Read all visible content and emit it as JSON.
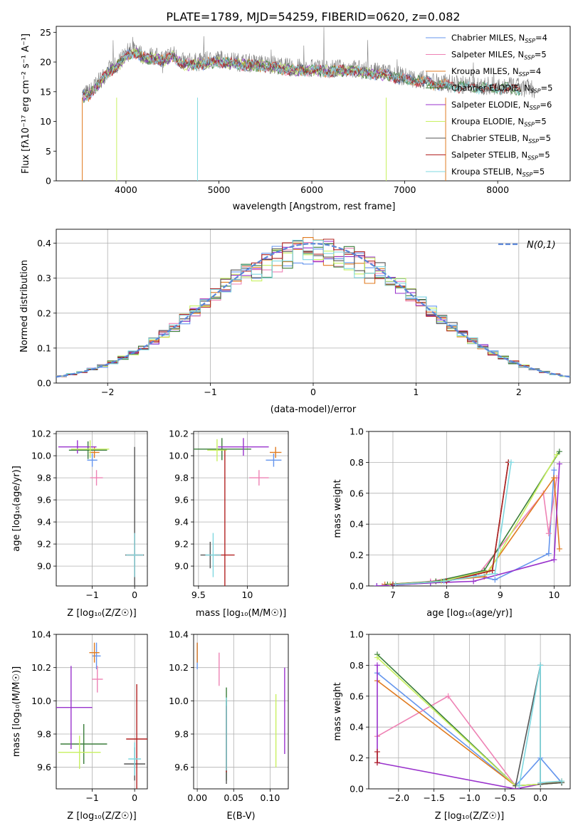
{
  "figure": {
    "title": "PLATE=1789, MJD=54259, FIBERID=0620, z=0.082"
  },
  "colors": {
    "chabrier_miles": "#6495ed",
    "salpeter_miles": "#ee82b4",
    "kroupa_miles": "#e07b20",
    "chabrier_elodie": "#3a7d3a",
    "salpeter_elodie": "#9932cc",
    "kroupa_elodie": "#c8f060",
    "chabrier_stelib": "#555555",
    "salpeter_stelib": "#b22222",
    "kroupa_stelib": "#7fd8e0"
  },
  "chart_data": [
    {
      "type": "line",
      "id": "spectrum",
      "title": "PLATE=1789, MJD=54259, FIBERID=0620, z=0.082",
      "xlabel": "wavelength [Angstrom, rest frame]",
      "ylabel": "Flux [fλ10⁻¹⁷ erg cm⁻² s⁻¹ A⁻¹]",
      "xlim": [
        3250,
        8780
      ],
      "ylim": [
        0,
        26
      ],
      "xticks": [
        4000,
        5000,
        6000,
        7000,
        8000
      ],
      "yticks": [
        0,
        5,
        10,
        15,
        20,
        25
      ],
      "legend_position": "top-right",
      "legend": [
        {
          "label": "Chabrier MILES, N",
          "sub": "SSP",
          "suffix": "=4",
          "color": "#6495ed"
        },
        {
          "label": "Salpeter MILES, N",
          "sub": "SSP",
          "suffix": "=5",
          "color": "#ee82b4"
        },
        {
          "label": "Kroupa MILES, N",
          "sub": "SSP",
          "suffix": "=4",
          "color": "#e07b20"
        },
        {
          "label": "Chabrier ELODIE, N",
          "sub": "SSP",
          "suffix": "=5",
          "color": "#3a7d3a"
        },
        {
          "label": "Salpeter ELODIE, N",
          "sub": "SSP",
          "suffix": "=6",
          "color": "#9932cc"
        },
        {
          "label": "Kroupa ELODIE, N",
          "sub": "SSP",
          "suffix": "=5",
          "color": "#c8f060"
        },
        {
          "label": "Chabrier STELIB, N",
          "sub": "SSP",
          "suffix": "=5",
          "color": "#555555"
        },
        {
          "label": "Salpeter STELIB, N",
          "sub": "SSP",
          "suffix": "=5",
          "color": "#b22222"
        },
        {
          "label": "Kroupa STELIB, N",
          "sub": "SSP",
          "suffix": "=5",
          "color": "#7fd8e0"
        }
      ],
      "data_envelope": {
        "x": [
          3500,
          3600,
          3700,
          3800,
          3900,
          4000,
          4100,
          4200,
          4300,
          4400,
          4500,
          4600,
          4800,
          5000,
          5200,
          5400,
          5600,
          5800,
          6000,
          6200,
          6400,
          6600,
          6800,
          7000,
          7200,
          7400,
          7600,
          7800,
          8000,
          8200,
          8400
        ],
        "y": [
          14.5,
          14.8,
          16.5,
          18.5,
          19.5,
          21.5,
          22.0,
          21.0,
          21.0,
          20.5,
          21.5,
          20.0,
          20.0,
          20.5,
          20.0,
          19.8,
          19.5,
          19.0,
          19.0,
          18.8,
          19.0,
          18.5,
          18.2,
          17.5,
          17.0,
          16.5,
          16.2,
          16.0,
          16.0,
          15.8,
          15.5
        ]
      }
    },
    {
      "type": "line",
      "id": "residuals",
      "xlabel": "(data-model)/error",
      "ylabel": "Normed distribution",
      "xlim": [
        -2.5,
        2.5
      ],
      "ylim": [
        0,
        0.44
      ],
      "xticks": [
        -2,
        -1,
        0,
        1,
        2
      ],
      "yticks": [
        0.0,
        0.1,
        0.2,
        0.3,
        0.4
      ],
      "legend_position": "top-right",
      "legend_label": "N(0,1)",
      "normal_color": "#5b86d8",
      "bins": 50
    },
    {
      "type": "scatter",
      "id": "age_vs_Z",
      "xlabel": "Z [log10(Z/Z☉)]",
      "ylabel": "age [log10(age/yr)]",
      "xlim": [
        -1.85,
        0.3
      ],
      "ylim": [
        8.82,
        10.22
      ],
      "xticks": [
        -1,
        0
      ],
      "yticks": [
        9.0,
        9.2,
        9.4,
        9.6,
        9.8,
        10.0,
        10.2
      ],
      "points": [
        {
          "x": -1.0,
          "y": 9.96,
          "xerr": 0.12,
          "yerr": 0.06,
          "color": "#6495ed"
        },
        {
          "x": -0.9,
          "y": 9.8,
          "xerr": 0.15,
          "yerr": 0.07,
          "color": "#ee82b4"
        },
        {
          "x": -0.95,
          "y": 10.03,
          "xerr": 0.12,
          "yerr": 0.05,
          "color": "#e07b20"
        },
        {
          "x": -1.1,
          "y": 10.05,
          "xerr": 0.45,
          "yerr": 0.08,
          "color": "#3a7d3a"
        },
        {
          "x": -1.35,
          "y": 10.08,
          "xerr": 0.45,
          "yerr": 0.06,
          "color": "#9932cc"
        },
        {
          "x": -1.05,
          "y": 10.06,
          "xerr": 0.45,
          "yerr": 0.08,
          "color": "#c8f060"
        },
        {
          "x": 0.0,
          "y": 9.1,
          "xerr": 0.22,
          "yerr": 0.98,
          "color": "#555555"
        },
        {
          "x": 0.0,
          "y": 9.1,
          "xerr": 0.18,
          "yerr": 0.2,
          "color": "#b22222"
        },
        {
          "x": 0.0,
          "y": 9.1,
          "xerr": 0.2,
          "yerr": 0.2,
          "color": "#7fd8e0"
        }
      ]
    },
    {
      "type": "scatter",
      "id": "age_vs_mass",
      "xlabel": "mass [log10(M/M☉)]",
      "ylabel": "",
      "xlim": [
        9.45,
        10.42
      ],
      "ylim": [
        8.82,
        10.22
      ],
      "xticks": [
        9.5,
        10.0
      ],
      "yticks": [
        9.0,
        9.2,
        9.4,
        9.6,
        9.8,
        10.0,
        10.2
      ],
      "points": [
        {
          "x": 10.27,
          "y": 9.96,
          "xerr": 0.08,
          "yerr": 0.06,
          "color": "#6495ed"
        },
        {
          "x": 10.12,
          "y": 9.8,
          "xerr": 0.1,
          "yerr": 0.07,
          "color": "#ee82b4"
        },
        {
          "x": 10.29,
          "y": 10.03,
          "xerr": 0.06,
          "yerr": 0.05,
          "color": "#e07b20"
        },
        {
          "x": 9.74,
          "y": 10.06,
          "xerr": 0.3,
          "yerr": 0.1,
          "color": "#3a7d3a"
        },
        {
          "x": 9.96,
          "y": 10.08,
          "xerr": 0.26,
          "yerr": 0.08,
          "color": "#9932cc"
        },
        {
          "x": 9.69,
          "y": 10.05,
          "xerr": 0.1,
          "yerr": 0.1,
          "color": "#c8f060"
        },
        {
          "x": 9.62,
          "y": 9.1,
          "xerr": 0.1,
          "yerr": 0.12,
          "color": "#555555"
        },
        {
          "x": 9.77,
          "y": 9.1,
          "xerr": 0.1,
          "yerr": 0.95,
          "color": "#b22222"
        },
        {
          "x": 9.65,
          "y": 9.1,
          "xerr": 0.08,
          "yerr": 0.2,
          "color": "#7fd8e0"
        }
      ]
    },
    {
      "type": "line",
      "id": "weight_vs_age",
      "xlabel": "age [log10(age/yr)]",
      "ylabel": "mass weight",
      "xlim": [
        6.55,
        10.3
      ],
      "ylim": [
        0,
        1.0
      ],
      "xticks": [
        7,
        8,
        9,
        10
      ],
      "yticks": [
        0.0,
        0.2,
        0.4,
        0.6,
        0.8,
        1.0
      ],
      "series": [
        {
          "color": "#6495ed",
          "x": [
            6.7,
            7.7,
            8.5,
            8.9,
            9.9,
            10.0
          ],
          "y": [
            0.0,
            0.02,
            0.07,
            0.04,
            0.21,
            0.75
          ]
        },
        {
          "color": "#ee82b4",
          "x": [
            6.8,
            7.7,
            8.6,
            9.8,
            9.9,
            10.05
          ],
          "y": [
            0.0,
            0.03,
            0.08,
            0.6,
            0.34,
            0.7
          ]
        },
        {
          "color": "#e07b20",
          "x": [
            6.85,
            7.8,
            8.7,
            10.0,
            10.1
          ],
          "y": [
            0.01,
            0.03,
            0.06,
            0.7,
            0.24
          ]
        },
        {
          "color": "#3a7d3a",
          "x": [
            6.9,
            7.8,
            8.7,
            10.1
          ],
          "y": [
            0.01,
            0.03,
            0.1,
            0.87
          ]
        },
        {
          "color": "#9932cc",
          "x": [
            6.7,
            7.7,
            8.5,
            10.0,
            10.1
          ],
          "y": [
            0.0,
            0.02,
            0.03,
            0.17,
            0.79
          ]
        },
        {
          "color": "#c8f060",
          "x": [
            6.95,
            7.9,
            8.8,
            10.05
          ],
          "y": [
            0.01,
            0.03,
            0.1,
            0.85
          ]
        },
        {
          "color": "#555555",
          "x": [
            7.0,
            8.0,
            8.85,
            9.15
          ],
          "y": [
            0.01,
            0.03,
            0.1,
            0.8
          ]
        },
        {
          "color": "#b22222",
          "x": [
            7.0,
            8.0,
            8.85,
            9.15
          ],
          "y": [
            0.01,
            0.03,
            0.1,
            0.8
          ]
        },
        {
          "color": "#7fd8e0",
          "x": [
            7.05,
            7.95,
            8.9,
            9.2
          ],
          "y": [
            0.01,
            0.03,
            0.08,
            0.8
          ]
        }
      ]
    },
    {
      "type": "scatter",
      "id": "mass_vs_Z",
      "xlabel": "Z [log10(Z/Z☉)]",
      "ylabel": "mass [log10(M/M☉)]",
      "xlim": [
        -1.85,
        0.3
      ],
      "ylim": [
        9.47,
        10.4
      ],
      "xticks": [
        -1,
        0
      ],
      "yticks": [
        9.6,
        9.8,
        10.0,
        10.2,
        10.4
      ],
      "points": [
        {
          "x": -0.9,
          "y": 10.27,
          "xerr": 0.1,
          "yerr": 0.08,
          "color": "#6495ed"
        },
        {
          "x": -0.88,
          "y": 10.13,
          "xerr": 0.13,
          "yerr": 0.08,
          "color": "#ee82b4"
        },
        {
          "x": -0.95,
          "y": 10.29,
          "xerr": 0.12,
          "yerr": 0.06,
          "color": "#e07b20"
        },
        {
          "x": -1.2,
          "y": 9.74,
          "xerr": 0.55,
          "yerr": 0.12,
          "color": "#3a7d3a"
        },
        {
          "x": -1.5,
          "y": 9.96,
          "xerr": 0.5,
          "yerr": 0.25,
          "color": "#9932cc"
        },
        {
          "x": -1.3,
          "y": 9.69,
          "xerr": 0.5,
          "yerr": 0.1,
          "color": "#c8f060"
        },
        {
          "x": 0.0,
          "y": 9.62,
          "xerr": 0.25,
          "yerr": 0.1,
          "color": "#555555"
        },
        {
          "x": 0.05,
          "y": 9.77,
          "xerr": 0.25,
          "yerr": 0.33,
          "color": "#b22222"
        },
        {
          "x": 0.0,
          "y": 9.65,
          "xerr": 0.15,
          "yerr": 0.1,
          "color": "#7fd8e0"
        }
      ]
    },
    {
      "type": "scatter",
      "id": "mass_vs_ebv",
      "xlabel": "E(B-V)",
      "ylabel": "",
      "xlim": [
        -0.005,
        0.125
      ],
      "ylim": [
        9.47,
        10.4
      ],
      "xticks": [
        0.0,
        0.05,
        0.1
      ],
      "xticklabels": [
        "0.00",
        "0.05",
        "0.10"
      ],
      "yticks": [
        9.6,
        9.8,
        10.0,
        10.2,
        10.4
      ],
      "points": [
        {
          "x": 0.0,
          "y": 10.27,
          "xerr": 0.0,
          "yerr": 0.08,
          "color": "#6495ed"
        },
        {
          "x": 0.03,
          "y": 10.19,
          "xerr": 0.0,
          "yerr": 0.1,
          "color": "#ee82b4"
        },
        {
          "x": 0.0,
          "y": 10.29,
          "xerr": 0.0,
          "yerr": 0.06,
          "color": "#e07b20"
        },
        {
          "x": 0.04,
          "y": 9.8,
          "xerr": 0.0,
          "yerr": 0.28,
          "color": "#3a7d3a"
        },
        {
          "x": 0.12,
          "y": 9.94,
          "xerr": 0.0,
          "yerr": 0.26,
          "color": "#9932cc"
        },
        {
          "x": 0.108,
          "y": 9.82,
          "xerr": 0.0,
          "yerr": 0.22,
          "color": "#c8f060"
        },
        {
          "x": 0.04,
          "y": 9.75,
          "xerr": 0.0,
          "yerr": 0.25,
          "color": "#555555"
        },
        {
          "x": 0.04,
          "y": 9.77,
          "xerr": 0.0,
          "yerr": 0.2,
          "color": "#b22222"
        },
        {
          "x": 0.04,
          "y": 9.8,
          "xerr": 0.0,
          "yerr": 0.22,
          "color": "#7fd8e0"
        }
      ]
    },
    {
      "type": "line",
      "id": "weight_vs_Z",
      "xlabel": "Z [log10(Z/Z☉)]",
      "ylabel": "mass weight",
      "xlim": [
        -2.42,
        0.42
      ],
      "ylim": [
        0,
        1.0
      ],
      "xticks": [
        -2.0,
        -1.5,
        -1.0,
        -0.5,
        0.0
      ],
      "xticklabels": [
        "−2.0",
        "−1.5",
        "−1.0",
        "−0.5",
        "0.0"
      ],
      "yticks": [
        0.0,
        0.2,
        0.4,
        0.6,
        0.8,
        1.0
      ],
      "series": [
        {
          "color": "#6495ed",
          "x": [
            -2.3,
            -0.35,
            0.0,
            0.3
          ],
          "y": [
            0.75,
            0.02,
            0.2,
            0.04
          ]
        },
        {
          "color": "#ee82b4",
          "x": [
            -2.3,
            -1.3,
            -0.35,
            0.0
          ],
          "y": [
            0.34,
            0.6,
            0.02,
            0.03
          ]
        },
        {
          "color": "#e07b20",
          "x": [
            -2.3,
            -0.35,
            0.0,
            0.3
          ],
          "y": [
            0.7,
            0.02,
            0.03,
            0.05
          ]
        },
        {
          "color": "#3a7d3a",
          "x": [
            -2.3,
            -0.35,
            0.0,
            0.3
          ],
          "y": [
            0.87,
            0.02,
            0.03,
            0.04
          ]
        },
        {
          "color": "#9932cc",
          "x": [
            -2.3,
            -2.3,
            -0.35,
            0.0
          ],
          "y": [
            0.8,
            0.17,
            0.0,
            0.03
          ]
        },
        {
          "color": "#c8f060",
          "x": [
            -2.3,
            -0.35,
            0.0,
            0.3
          ],
          "y": [
            0.85,
            0.02,
            0.03,
            0.04
          ]
        },
        {
          "color": "#555555",
          "x": [
            -0.35,
            0.0,
            0.0,
            0.3
          ],
          "y": [
            0.02,
            0.8,
            0.03,
            0.04
          ]
        },
        {
          "color": "#b22222",
          "x": [
            -2.3,
            -2.3
          ],
          "y": [
            0.24,
            0.17
          ]
        },
        {
          "color": "#7fd8e0",
          "x": [
            -0.3,
            0.0,
            0.0,
            0.3
          ],
          "y": [
            0.02,
            0.8,
            0.04,
            0.05
          ]
        }
      ]
    }
  ]
}
